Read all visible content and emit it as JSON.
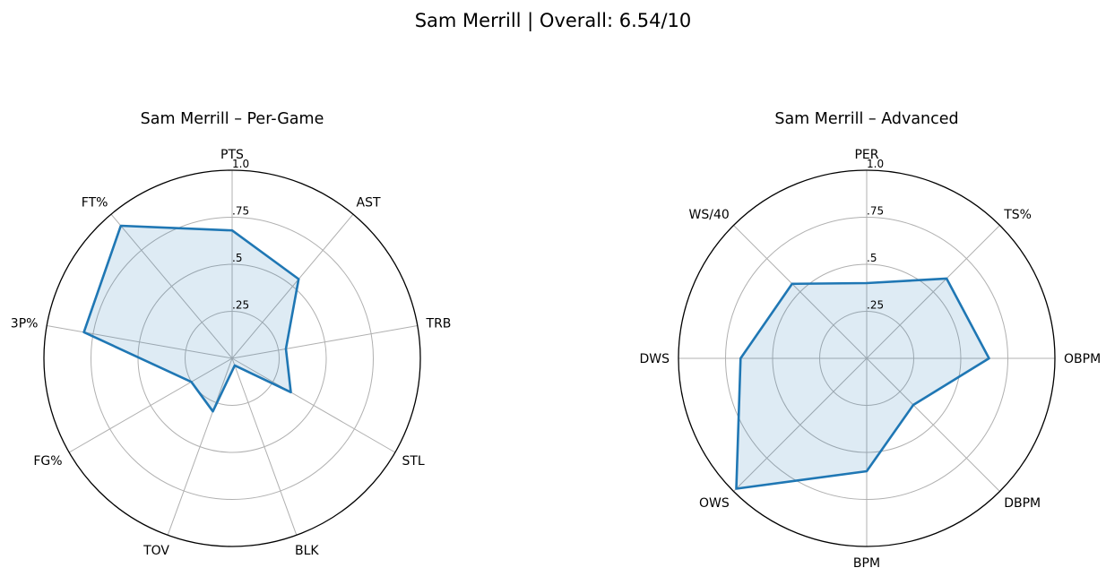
{
  "figure": {
    "title": "Sam Merrill | Overall: 6.54/10"
  },
  "colors": {
    "series": "#1f77b4",
    "grid": "#b0b0b0",
    "frame": "#000000"
  },
  "chart_data": [
    {
      "type": "radar",
      "title": "Sam Merrill – Per-Game",
      "categories": [
        "PTS",
        "AST",
        "TRB",
        "STL",
        "BLK",
        "TOV",
        "FG%",
        "3P%",
        "FT%"
      ],
      "values": [
        0.68,
        0.55,
        0.29,
        0.36,
        0.04,
        0.3,
        0.25,
        0.8,
        0.92
      ],
      "rlim": [
        0,
        1
      ],
      "rticks": [
        0.25,
        0.5,
        0.75,
        1.0
      ],
      "rtick_labels": [
        ".25",
        ".5",
        ".75",
        "1.0"
      ],
      "grid": true
    },
    {
      "type": "radar",
      "title": "Sam Merrill – Advanced",
      "categories": [
        "PER",
        "TS%",
        "OBPM",
        "DBPM",
        "BPM",
        "OWS",
        "DWS",
        "WS/40"
      ],
      "values": [
        0.4,
        0.6,
        0.65,
        0.35,
        0.6,
        0.98,
        0.67,
        0.56
      ],
      "rlim": [
        0,
        1
      ],
      "rticks": [
        0.25,
        0.5,
        0.75,
        1.0
      ],
      "rtick_labels": [
        ".25",
        ".5",
        ".75",
        "1.0"
      ],
      "grid": true
    }
  ]
}
